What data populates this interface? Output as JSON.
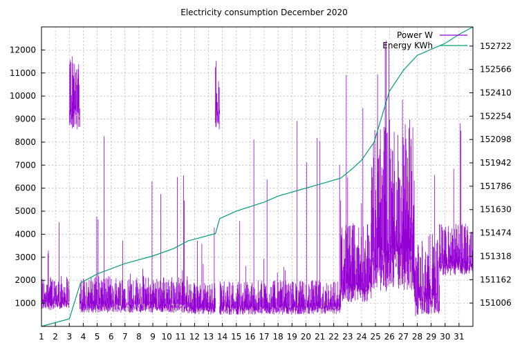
{
  "chart_data": {
    "type": "line",
    "title": "Electricity consumption December 2020",
    "grid": true,
    "legend_placement": "top-right",
    "x": {
      "ticks": [
        1,
        2,
        3,
        4,
        5,
        6,
        7,
        8,
        9,
        10,
        11,
        12,
        13,
        14,
        15,
        16,
        17,
        18,
        19,
        20,
        21,
        22,
        23,
        24,
        25,
        26,
        27,
        28,
        29,
        30,
        31
      ],
      "range": [
        1,
        32
      ]
    },
    "y_left": {
      "ticks": [
        1000,
        2000,
        3000,
        4000,
        5000,
        6000,
        7000,
        8000,
        9000,
        10000,
        11000,
        12000
      ],
      "range": [
        0,
        13000
      ]
    },
    "y_right": {
      "ticks": [
        151006,
        151162,
        151318,
        151474,
        151630,
        151786,
        151942,
        152098,
        152254,
        152410,
        152566,
        152722
      ],
      "range": [
        150850,
        152850
      ]
    },
    "series": [
      {
        "name": "Power W",
        "color": "#9400d3",
        "axis": "left",
        "segments": [
          {
            "from": 1.0,
            "to": 3.0,
            "low": 900,
            "high": 2200,
            "max": 6000
          },
          {
            "from": 3.0,
            "to": 3.75,
            "low": 9000,
            "high": 12000,
            "max": 13000
          },
          {
            "from": 3.75,
            "to": 11.5,
            "low": 800,
            "high": 2200,
            "max": 9000
          },
          {
            "from": 11.5,
            "to": 13.5,
            "low": 700,
            "high": 1900,
            "max": 4500
          },
          {
            "from": 13.5,
            "to": 13.8,
            "low": 9000,
            "high": 12000,
            "max": 12000
          },
          {
            "from": 13.8,
            "to": 22.5,
            "low": 700,
            "high": 2000,
            "max": 9000
          },
          {
            "from": 22.5,
            "to": 24.7,
            "low": 1500,
            "high": 4500,
            "max": 13000
          },
          {
            "from": 24.7,
            "to": 27.8,
            "low": 2500,
            "high": 9000,
            "max": 13000
          },
          {
            "from": 27.8,
            "to": 29.6,
            "low": 900,
            "high": 4000,
            "max": 9000
          },
          {
            "from": 29.6,
            "to": 32.0,
            "low": 2500,
            "high": 4500,
            "max": 12000
          }
        ]
      },
      {
        "name": "Energy KWh",
        "color": "#009e73",
        "axis": "right",
        "x": [
          1.0,
          3.0,
          3.8,
          5.0,
          7.0,
          9.0,
          10.5,
          11.5,
          13.5,
          13.8,
          15.0,
          17.0,
          18.0,
          19.5,
          21.0,
          22.5,
          23.3,
          24.0,
          24.9,
          26.0,
          27.0,
          28.0,
          28.5,
          29.0,
          29.5,
          30.0,
          31.0,
          32.0
        ],
        "values": [
          150850,
          150900,
          151140,
          151200,
          151270,
          151320,
          151370,
          151420,
          151470,
          151570,
          151620,
          151680,
          151720,
          151760,
          151800,
          151840,
          151900,
          151960,
          152080,
          152420,
          152560,
          152660,
          152680,
          152700,
          152720,
          152740,
          152800,
          152850
        ]
      }
    ]
  }
}
